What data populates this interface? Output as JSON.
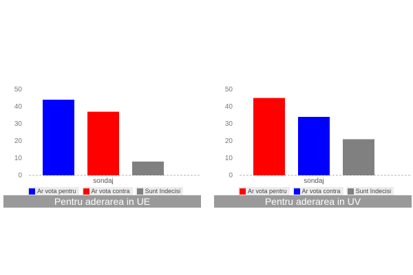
{
  "charts": [
    {
      "caption": "Pentru aderarea in UE",
      "chart_data": {
        "type": "bar",
        "categories": [
          "sondaj"
        ],
        "series": [
          {
            "name": "Ar vota pentru",
            "values": [
              44
            ],
            "color": "#0000ff"
          },
          {
            "name": "Ar vota contra",
            "values": [
              37
            ],
            "color": "#ff0000"
          },
          {
            "name": "Sunt Indecisi",
            "values": [
              8
            ],
            "color": "#808080"
          }
        ],
        "title": "",
        "xlabel": "",
        "ylabel": "",
        "ylim": [
          0,
          50
        ],
        "yticks": [
          0,
          10,
          20,
          30,
          40,
          50
        ],
        "grid": false,
        "legend": "bottom"
      }
    },
    {
      "caption": "Pentru aderarea in UV",
      "chart_data": {
        "type": "bar",
        "categories": [
          "sondaj"
        ],
        "series": [
          {
            "name": "Ar vota pentru",
            "values": [
              45
            ],
            "color": "#ff0000"
          },
          {
            "name": "Ar vota contra",
            "values": [
              34
            ],
            "color": "#0000ff"
          },
          {
            "name": "Sunt Indecisi",
            "values": [
              21
            ],
            "color": "#808080"
          }
        ],
        "title": "",
        "xlabel": "",
        "ylabel": "",
        "ylim": [
          0,
          50
        ],
        "yticks": [
          0,
          10,
          20,
          30,
          40,
          50
        ],
        "grid": false,
        "legend": "bottom"
      }
    }
  ]
}
